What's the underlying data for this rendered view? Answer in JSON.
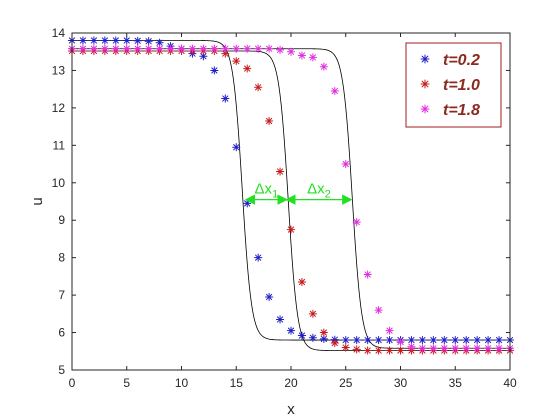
{
  "chart_data": {
    "type": "scatter",
    "title": "",
    "xlabel": "x",
    "ylabel": "u",
    "xlim": [
      0,
      40
    ],
    "ylim": [
      5,
      14
    ],
    "xticks": [
      0,
      5,
      10,
      15,
      20,
      25,
      30,
      35,
      40
    ],
    "yticks": [
      5,
      6,
      7,
      8,
      9,
      10,
      11,
      12,
      13,
      14
    ],
    "grid": false,
    "legend_position": "top-right",
    "series": [
      {
        "name": "t=0.2",
        "color": "#1f1fc8",
        "marker": "asterisk",
        "x": [
          0,
          1,
          2,
          3,
          4,
          5,
          6,
          7,
          8,
          9,
          10,
          11,
          12,
          13,
          14,
          15,
          16,
          17,
          18,
          19,
          20,
          21,
          22,
          23,
          24,
          25,
          26,
          27,
          28,
          29,
          30,
          31,
          32,
          33,
          34,
          35,
          36,
          37,
          38,
          39,
          40
        ],
        "y": [
          13.8,
          13.8,
          13.8,
          13.8,
          13.8,
          13.8,
          13.79,
          13.78,
          13.74,
          13.65,
          13.58,
          13.45,
          13.38,
          13.0,
          12.25,
          10.95,
          9.45,
          8.0,
          6.95,
          6.35,
          6.05,
          5.92,
          5.86,
          5.83,
          5.81,
          5.8,
          5.8,
          5.8,
          5.8,
          5.8,
          5.8,
          5.8,
          5.8,
          5.8,
          5.8,
          5.8,
          5.8,
          5.8,
          5.8,
          5.8,
          5.8
        ]
      },
      {
        "name": "t=1.0",
        "color": "#c81a1a",
        "marker": "asterisk",
        "x": [
          0,
          1,
          2,
          3,
          4,
          5,
          6,
          7,
          8,
          9,
          10,
          11,
          12,
          13,
          14,
          15,
          16,
          17,
          18,
          19,
          20,
          21,
          22,
          23,
          24,
          25,
          26,
          27,
          28,
          29,
          30,
          31,
          32,
          33,
          34,
          35,
          36,
          37,
          38,
          39,
          40
        ],
        "y": [
          13.52,
          13.52,
          13.52,
          13.52,
          13.52,
          13.52,
          13.52,
          13.52,
          13.52,
          13.52,
          13.52,
          13.52,
          13.52,
          13.52,
          13.45,
          13.25,
          13.05,
          12.55,
          11.65,
          10.3,
          8.75,
          7.35,
          6.5,
          6.0,
          5.72,
          5.6,
          5.55,
          5.52,
          5.52,
          5.52,
          5.52,
          5.52,
          5.52,
          5.52,
          5.52,
          5.52,
          5.52,
          5.52,
          5.52,
          5.52,
          5.52
        ]
      },
      {
        "name": "t=1.8",
        "color": "#e12ee1",
        "marker": "asterisk",
        "x": [
          0,
          1,
          2,
          3,
          4,
          5,
          6,
          7,
          8,
          9,
          10,
          11,
          12,
          13,
          14,
          15,
          16,
          17,
          18,
          19,
          20,
          21,
          22,
          23,
          24,
          25,
          26,
          27,
          28,
          29,
          30,
          31,
          32,
          33,
          34,
          35,
          36,
          37,
          38,
          39,
          40
        ],
        "y": [
          13.58,
          13.58,
          13.58,
          13.58,
          13.58,
          13.58,
          13.58,
          13.58,
          13.58,
          13.58,
          13.58,
          13.58,
          13.58,
          13.58,
          13.58,
          13.58,
          13.58,
          13.58,
          13.58,
          13.55,
          13.5,
          13.4,
          13.35,
          13.1,
          12.45,
          10.5,
          8.95,
          7.55,
          6.6,
          6.05,
          5.75,
          5.62,
          5.58,
          5.58,
          5.58,
          5.58,
          5.58,
          5.58,
          5.58,
          5.58,
          5.58
        ]
      }
    ],
    "fit_curves": [
      {
        "for_series": "t=0.2",
        "color": "#000000",
        "u_high": 13.8,
        "u_low": 5.8,
        "center": 15.55,
        "width": 0.85
      },
      {
        "for_series": "t=1.0",
        "color": "#000000",
        "u_high": 13.52,
        "u_low": 5.52,
        "center": 19.75,
        "width": 0.85
      },
      {
        "for_series": "t=1.8",
        "color": "#000000",
        "u_high": 13.58,
        "u_low": 5.58,
        "center": 25.6,
        "width": 0.85
      }
    ],
    "annotations": [
      {
        "label": "Δx",
        "subscript": "1",
        "color": "#22e022",
        "x_from": 15.9,
        "x_to": 19.6,
        "y": 9.55
      },
      {
        "label": "Δx",
        "subscript": "2",
        "color": "#22e022",
        "x_from": 19.6,
        "x_to": 25.5,
        "y": 9.55
      }
    ],
    "legend": {
      "text_color": "#8b2a1e",
      "border_color": "#a11c1c"
    }
  }
}
